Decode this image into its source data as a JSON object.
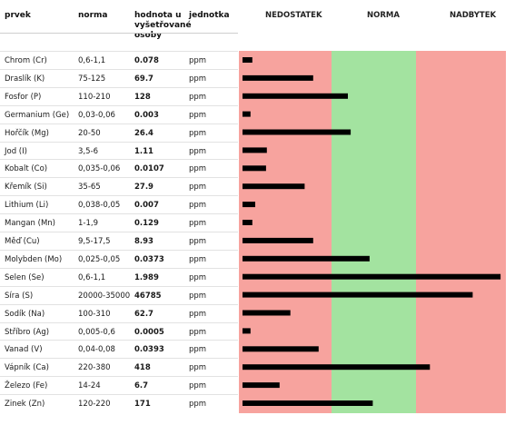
{
  "headers": {
    "element": "prvek",
    "norm": "norma",
    "value": "hodnota u vyšetřované osoby",
    "value_lines": [
      "hodnota u",
      "vyšetřované",
      "osoby"
    ],
    "unit": "jednotka",
    "zones": [
      "NEDOSTATEK",
      "NORMA",
      "NADBYTEK"
    ]
  },
  "colors": {
    "deficiency": "#f7a39e",
    "normal": "#a3e3a0",
    "excess": "#f7a39e",
    "bar": "#000000"
  },
  "chart_data": {
    "type": "bar",
    "orientation": "horizontal",
    "zones": [
      "NEDOSTATEK",
      "NORMA",
      "NADBYTEK"
    ],
    "rows": [
      {
        "name": "Chrom (Cr)",
        "norm": "0,6-1,1",
        "value": "0.078",
        "unit": "ppm",
        "bar_fraction": 0.038
      },
      {
        "name": "Draslík (K)",
        "norm": "75-125",
        "value": "69.7",
        "unit": "ppm",
        "bar_fraction": 0.273
      },
      {
        "name": "Fosfor (P)",
        "norm": "110-210",
        "value": "128",
        "unit": "ppm",
        "bar_fraction": 0.407
      },
      {
        "name": "Germanium (Ge)",
        "norm": "0,03-0,06",
        "value": "0.003",
        "unit": "ppm",
        "bar_fraction": 0.031
      },
      {
        "name": "Hořčík (Mg)",
        "norm": "20-50",
        "value": "26.4",
        "unit": "ppm",
        "bar_fraction": 0.418
      },
      {
        "name": "Jod (I)",
        "norm": "3,5-6",
        "value": "1.11",
        "unit": "ppm",
        "bar_fraction": 0.094
      },
      {
        "name": "Kobalt (Co)",
        "norm": "0,035-0,06",
        "value": "0.0107",
        "unit": "ppm",
        "bar_fraction": 0.091
      },
      {
        "name": "Křemík (Si)",
        "norm": "35-65",
        "value": "27.9",
        "unit": "ppm",
        "bar_fraction": 0.24
      },
      {
        "name": "Lithium (Li)",
        "norm": "0,038-0,05",
        "value": "0.007",
        "unit": "ppm",
        "bar_fraction": 0.049
      },
      {
        "name": "Mangan (Mn)",
        "norm": "1-1,9",
        "value": "0.129",
        "unit": "ppm",
        "bar_fraction": 0.038
      },
      {
        "name": "Měď (Cu)",
        "norm": "9,5-17,5",
        "value": "8.93",
        "unit": "ppm",
        "bar_fraction": 0.273
      },
      {
        "name": "Molybden (Mo)",
        "norm": "0,025-0,05",
        "value": "0.0373",
        "unit": "ppm",
        "bar_fraction": 0.491
      },
      {
        "name": "Selen (Se)",
        "norm": "0,6-1,1",
        "value": "1.989",
        "unit": "ppm",
        "bar_fraction": 0.997
      },
      {
        "name": "Síra (S)",
        "norm": "20000-35000",
        "value": "46785",
        "unit": "ppm",
        "bar_fraction": 0.889
      },
      {
        "name": "Sodík (Na)",
        "norm": "100-310",
        "value": "62.7",
        "unit": "ppm",
        "bar_fraction": 0.185
      },
      {
        "name": "Stříbro (Ag)",
        "norm": "0,005-0,6",
        "value": "0.0005",
        "unit": "ppm",
        "bar_fraction": 0.031
      },
      {
        "name": "Vanad (V)",
        "norm": "0,04-0,08",
        "value": "0.0393",
        "unit": "ppm",
        "bar_fraction": 0.294
      },
      {
        "name": "Vápník (Ca)",
        "norm": "220-380",
        "value": "418",
        "unit": "ppm",
        "bar_fraction": 0.724
      },
      {
        "name": "Železo (Fe)",
        "norm": "14-24",
        "value": "6.7",
        "unit": "ppm",
        "bar_fraction": 0.143
      },
      {
        "name": "Zinek (Zn)",
        "norm": "120-220",
        "value": "171",
        "unit": "ppm",
        "bar_fraction": 0.503
      }
    ]
  }
}
